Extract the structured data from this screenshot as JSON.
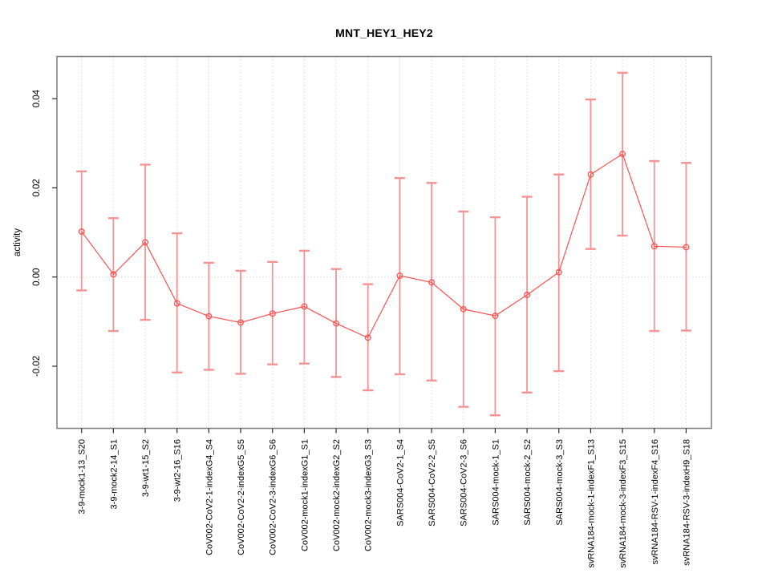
{
  "figure": {
    "title": "MNT_HEY1_HEY2"
  },
  "chart_data": {
    "type": "line",
    "subtype": "points-with-error-bars",
    "title": "MNT_HEY1_HEY2",
    "xlabel": "",
    "ylabel": "activity",
    "legend": "none",
    "grid": "vertical dotted gridline per category; dotted horizontal line at y=0",
    "ylim": [
      -0.0339,
      0.0494
    ],
    "yticks": [
      {
        "value": -0.02,
        "label": "-0.02"
      },
      {
        "value": 0.0,
        "label": "0.00"
      },
      {
        "value": 0.02,
        "label": "0.02"
      },
      {
        "value": 0.04,
        "label": "0.04"
      }
    ],
    "categories": [
      "3-9-mock1-13_S20",
      "3-9-mock2-14_S1",
      "3-9-wt1-15_S2",
      "3-9-wt2-16_S16",
      "CoV002-CoV2-1-indexG4_S4",
      "CoV002-CoV2-2-indexG5_S5",
      "CoV002-CoV2-3-indexG6_S6",
      "CoV002-mock1-indexG1_S1",
      "CoV002-mock2-indexG2_S2",
      "CoV002-mock3-indexG3_S3",
      "SARS004-CoV2-1_S4",
      "SARS004-CoV2-2_S5",
      "SARS004-CoV2-3_S6",
      "SARS004-mock-1_S1",
      "SARS004-mock-2_S2",
      "SARS004-mock-3_S3",
      "svRNA184-mock-1-indexF1_S13",
      "svRNA184-mock-3-indexF3_S15",
      "svRNA184-RSV-1-indexF4_S16",
      "svRNA184-RSV-3-indexH9_S18"
    ],
    "series": [
      {
        "name": "activity",
        "values": [
          0.0102,
          0.0006,
          0.0078,
          -0.0059,
          -0.0088,
          -0.0102,
          -0.0082,
          -0.0066,
          -0.0104,
          -0.0136,
          0.0003,
          -0.0012,
          -0.0072,
          -0.0087,
          -0.004,
          0.0011,
          0.023,
          0.0276,
          0.0069,
          0.0067
        ],
        "lower": [
          -0.003,
          -0.0121,
          -0.0096,
          -0.0214,
          -0.0208,
          -0.0217,
          -0.0196,
          -0.0194,
          -0.0224,
          -0.0254,
          -0.0218,
          -0.0232,
          -0.0291,
          -0.031,
          -0.0259,
          -0.0211,
          0.0063,
          0.0093,
          -0.0121,
          -0.012
        ],
        "upper": [
          0.0237,
          0.0132,
          0.0252,
          0.0098,
          0.0032,
          0.0014,
          0.0034,
          0.0059,
          0.0018,
          -0.0016,
          0.0222,
          0.0211,
          0.0147,
          0.0134,
          0.018,
          0.023,
          0.0398,
          0.0458,
          0.026,
          0.0256
        ]
      }
    ],
    "colors": {
      "point_line": "#ff5050",
      "error_bar": "#f69292",
      "grid": "#d9d9d9",
      "zero_line": "#d9d9d9",
      "box": "#828282",
      "tick": "#2b2b2b",
      "text": "#000000",
      "background": "#ffffff"
    }
  }
}
